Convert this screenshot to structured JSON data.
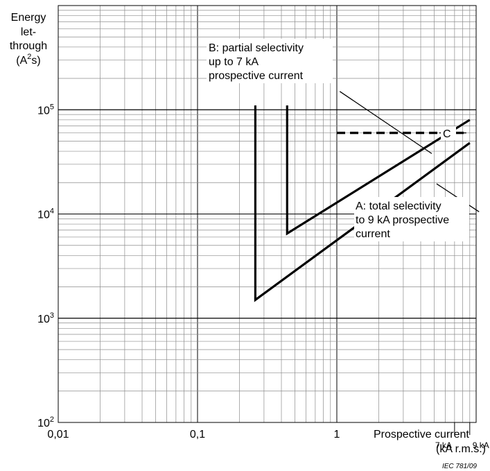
{
  "chart_data": {
    "type": "line",
    "xscale": "log",
    "yscale": "log",
    "xlim": [
      0.01,
      10
    ],
    "ylim": [
      100,
      1000000
    ],
    "grid": true,
    "ylabel_lines": [
      "Energy",
      "let-",
      "through"
    ],
    "ylabel_unit": {
      "open": "(A",
      "sup": "2",
      "close": "s)"
    },
    "xlabel_lines": [
      "Prospective current",
      "(kA r.m.s.)"
    ],
    "x_tick_labels": [
      {
        "value": 0.01,
        "label": "0,01"
      },
      {
        "value": 0.1,
        "label": "0,1"
      },
      {
        "value": 1,
        "label": "1"
      }
    ],
    "y_tick_labels": [
      {
        "value": 100,
        "base": "10",
        "exp": "2"
      },
      {
        "value": 1000,
        "base": "10",
        "exp": "3"
      },
      {
        "value": 10000,
        "base": "10",
        "exp": "4"
      },
      {
        "value": 100000,
        "base": "10",
        "exp": "5"
      }
    ],
    "x_markers": [
      {
        "value": 7,
        "label": "7 kA"
      },
      {
        "value": 9,
        "label": "9 kA"
      }
    ],
    "series": [
      {
        "id": "A",
        "style": "solid",
        "points": [
          [
            0.26,
            110000
          ],
          [
            0.26,
            1500
          ],
          [
            9,
            48000
          ]
        ]
      },
      {
        "id": "B",
        "style": "solid",
        "points": [
          [
            0.44,
            110000
          ],
          [
            0.44,
            6500
          ],
          [
            9,
            80000
          ]
        ]
      },
      {
        "id": "C",
        "style": "dashed",
        "points": [
          [
            1,
            60000
          ],
          [
            8.5,
            60000
          ]
        ]
      }
    ],
    "annotations": [
      {
        "id": "B",
        "lines": [
          "B: partial selectivity",
          "up to 7 kA",
          "prospective current"
        ],
        "leader_from": [
          1.05,
          150000
        ],
        "leader_to": [
          4.8,
          38000
        ]
      },
      {
        "id": "A",
        "lines": [
          "A: total selectivity",
          "to 9 kA prospective",
          "current"
        ],
        "leader_from": [
          10.5,
          10500
        ],
        "leader_to": [
          5.2,
          19500
        ]
      },
      {
        "id": "C",
        "lines": [
          "C"
        ]
      }
    ],
    "footnote": "IEC  781/09"
  }
}
